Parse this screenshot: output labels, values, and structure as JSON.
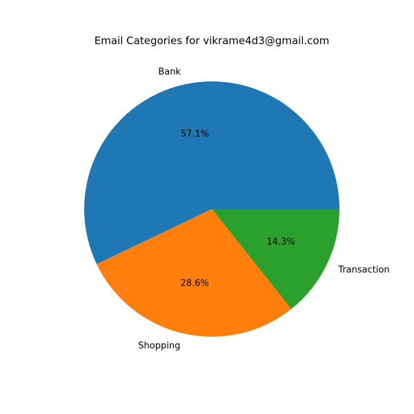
{
  "chart_data": {
    "type": "pie",
    "title": "Email Categories for vikrame4d3@gmail.com",
    "slices": [
      {
        "label": "Bank",
        "value": 57.1,
        "pct_label": "57.1%",
        "color": "#1f77b4"
      },
      {
        "label": "Shopping",
        "value": 28.6,
        "pct_label": "28.6%",
        "color": "#ff7f0e"
      },
      {
        "label": "Transaction",
        "value": 14.3,
        "pct_label": "14.3%",
        "color": "#2ca02c"
      }
    ],
    "start_angle": 0,
    "direction": "counterclockwise"
  }
}
